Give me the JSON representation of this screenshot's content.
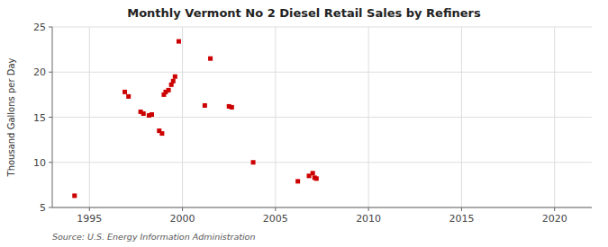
{
  "chart_data": {
    "type": "scatter",
    "title": "Monthly Vermont No 2 Diesel Retail Sales by Refiners",
    "ylabel": "Thousand Gallons per Day",
    "source": "Source: U.S. Energy Information Administration",
    "color": "#cc0000",
    "marker": "square",
    "grid": true,
    "xlim": [
      1993,
      2022
    ],
    "ylim": [
      5,
      25
    ],
    "xticks": [
      1995,
      2000,
      2005,
      2010,
      2015,
      2020
    ],
    "yticks": [
      5,
      10,
      15,
      20,
      25
    ],
    "x": [
      1994.2,
      1996.9,
      1997.1,
      1997.75,
      1997.9,
      1998.2,
      1998.35,
      1998.75,
      1998.9,
      1999.0,
      1999.1,
      1999.25,
      1999.4,
      1999.5,
      1999.6,
      1999.8,
      2001.2,
      2001.5,
      2002.5,
      2002.65,
      2003.8,
      2006.2,
      2006.8,
      2007.0,
      2007.1,
      2007.2
    ],
    "values": [
      6.3,
      17.8,
      17.3,
      15.6,
      15.4,
      15.2,
      15.3,
      13.5,
      13.2,
      17.5,
      17.8,
      18.0,
      18.6,
      19.0,
      19.5,
      23.4,
      16.3,
      21.5,
      16.2,
      16.1,
      10.0,
      7.9,
      8.5,
      8.8,
      8.3,
      8.2
    ]
  }
}
